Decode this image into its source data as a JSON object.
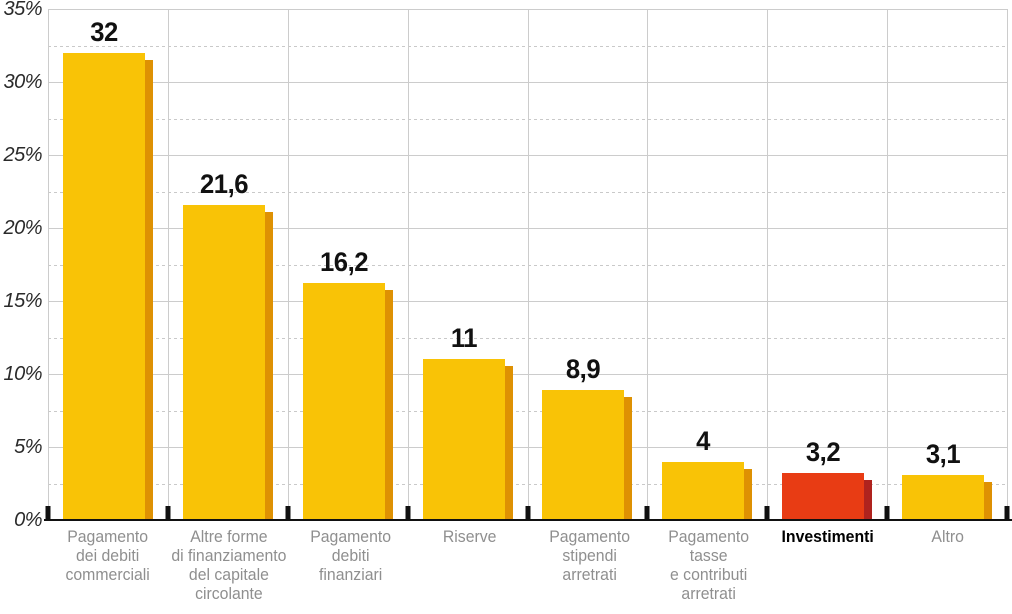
{
  "chart_data": {
    "type": "bar",
    "title": "",
    "unit": "%",
    "y_axis": {
      "min": 0,
      "max": 35,
      "major_step": 5,
      "minor_step": 2.5,
      "tick_labels": [
        "0%",
        "5%",
        "10%",
        "15%",
        "20%",
        "25%",
        "30%",
        "35%"
      ],
      "grid": true
    },
    "categories": [
      "Pagamento dei debiti commerciali",
      "Altre forme di finanziamento del capitale circolante",
      "Pagamento debiti finanziari",
      "Riserve",
      "Pagamento stipendi arretrati",
      "Pagamento tasse e contributi arretrati",
      "Investimenti",
      "Altro"
    ],
    "values": [
      32,
      21.6,
      16.2,
      11,
      8.9,
      4,
      3.2,
      3.1
    ],
    "bars": [
      {
        "category": "Pagamento dei debiti commerciali",
        "label_lines": [
          "Pagamento",
          "dei debiti",
          "commerciali"
        ],
        "value": 32,
        "value_label": "32",
        "highlighted": false
      },
      {
        "category": "Altre forme di finanziamento del capitale circolante",
        "label_lines": [
          "Altre forme",
          "di finanziamento",
          "del capitale",
          "circolante"
        ],
        "value": 21.6,
        "value_label": "21,6",
        "highlighted": false
      },
      {
        "category": "Pagamento debiti finanziari",
        "label_lines": [
          "Pagamento",
          "debiti",
          "finanziari"
        ],
        "value": 16.2,
        "value_label": "16,2",
        "highlighted": false
      },
      {
        "category": "Riserve",
        "label_lines": [
          "Riserve"
        ],
        "value": 11,
        "value_label": "11",
        "highlighted": false
      },
      {
        "category": "Pagamento stipendi arretrati",
        "label_lines": [
          "Pagamento",
          "stipendi",
          "arretrati"
        ],
        "value": 8.9,
        "value_label": "8,9",
        "highlighted": false
      },
      {
        "category": "Pagamento tasse e contributi arretrati",
        "label_lines": [
          "Pagamento",
          "tasse",
          "e contributi",
          "arretrati"
        ],
        "value": 4,
        "value_label": "4",
        "highlighted": false
      },
      {
        "category": "Investimenti",
        "label_lines": [
          "Investimenti"
        ],
        "value": 3.2,
        "value_label": "3,2",
        "highlighted": true
      },
      {
        "category": "Altro",
        "label_lines": [
          "Altro"
        ],
        "value": 3.1,
        "value_label": "3,1",
        "highlighted": false
      }
    ],
    "legend": null,
    "layout": {
      "grid": true,
      "highlight_index": 6
    },
    "colors": {
      "background": "#FFFFFF",
      "bar": "#F9C306",
      "bar_shade": "#DE9103",
      "highlight_bar": "#E83C14",
      "highlight_shade": "#AF231E",
      "grid_line": "#CCCCCC",
      "minor_grid_line": "#C9C9C9",
      "axis_line": "#111111",
      "tick": "#111111",
      "y_label": "#2A2A2A",
      "x_label": "#8F8F8F",
      "x_label_highlight": "#000000",
      "value_label": "#111111"
    }
  }
}
